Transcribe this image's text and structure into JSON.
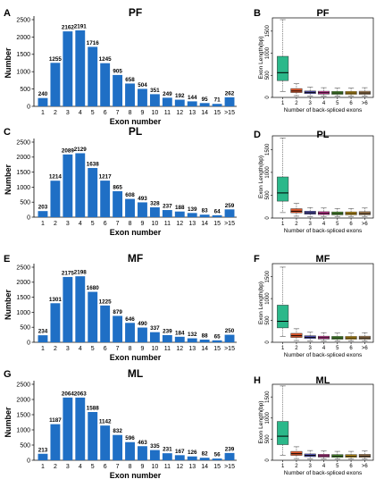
{
  "colors": {
    "bar": "#1f6fc5",
    "box_fills": [
      "#2bb88a",
      "#e25a2e",
      "#5a58c8",
      "#d93aa0",
      "#5cad38",
      "#e6b01c",
      "#b58b5a"
    ]
  },
  "bar_panels": [
    {
      "letter": "A",
      "title": "PF",
      "xlabel": "Exon number",
      "ylabel": "Number"
    },
    {
      "letter": "C",
      "title": "PL",
      "xlabel": "Exon number",
      "ylabel": "Number"
    },
    {
      "letter": "E",
      "title": "MF",
      "xlabel": "Exon number",
      "ylabel": "Number"
    },
    {
      "letter": "G",
      "title": "ML",
      "xlabel": "Exon number",
      "ylabel": "Number"
    }
  ],
  "box_panels": [
    {
      "letter": "B",
      "title": "PF",
      "xlabel": "Number of back-spliced exons",
      "ylabel": "Exon Length(bp)"
    },
    {
      "letter": "D",
      "title": "PL",
      "xlabel": "Number of back-spliced exons",
      "ylabel": "Exon Length(bp)"
    },
    {
      "letter": "F",
      "title": "MF",
      "xlabel": "Number of back-spliced exons",
      "ylabel": "Exon Length(bp)"
    },
    {
      "letter": "H",
      "title": "ML",
      "xlabel": "Number of back-spliced exons",
      "ylabel": "Exon Length(bp)"
    }
  ],
  "chart_data": [
    {
      "type": "bar",
      "title": "PF",
      "xlabel": "Exon number",
      "ylabel": "Number",
      "ylim": [
        0,
        2500
      ],
      "yticks": [
        0,
        500,
        1000,
        1500,
        2000,
        2500
      ],
      "categories": [
        "1",
        "2",
        "3",
        "4",
        "5",
        "6",
        "7",
        "8",
        "9",
        "10",
        "11",
        "12",
        "13",
        "14",
        "15",
        ">15"
      ],
      "values": [
        240,
        1255,
        2162,
        2191,
        1716,
        1245,
        905,
        658,
        504,
        351,
        249,
        192,
        144,
        95,
        71,
        262
      ]
    },
    {
      "type": "box",
      "title": "PF",
      "xlabel": "Number of back-spliced exons",
      "ylabel": "Exon Length(bp)",
      "ylim": [
        0,
        1800
      ],
      "yticks": [
        0,
        500,
        1000,
        1500
      ],
      "categories": [
        "1",
        "2",
        "3",
        "4",
        "5",
        "6",
        ">6"
      ],
      "boxes": [
        {
          "min": 130,
          "q1": 380,
          "median": 560,
          "q3": 930,
          "max": 1760
        },
        {
          "min": 40,
          "q1": 110,
          "median": 145,
          "q3": 200,
          "max": 310
        },
        {
          "min": 30,
          "q1": 85,
          "median": 115,
          "q3": 145,
          "max": 230
        },
        {
          "min": 30,
          "q1": 75,
          "median": 105,
          "q3": 140,
          "max": 220
        },
        {
          "min": 30,
          "q1": 70,
          "median": 100,
          "q3": 135,
          "max": 210
        },
        {
          "min": 30,
          "q1": 70,
          "median": 100,
          "q3": 135,
          "max": 210
        },
        {
          "min": 30,
          "q1": 70,
          "median": 100,
          "q3": 140,
          "max": 220
        }
      ]
    },
    {
      "type": "bar",
      "title": "PL",
      "xlabel": "Exon number",
      "ylabel": "Number",
      "ylim": [
        0,
        2500
      ],
      "yticks": [
        0,
        500,
        1000,
        1500,
        2000,
        2500
      ],
      "categories": [
        "1",
        "2",
        "3",
        "4",
        "5",
        "6",
        "7",
        "8",
        "9",
        "10",
        "11",
        "12",
        "13",
        "14",
        "15",
        ">15"
      ],
      "values": [
        203,
        1214,
        2089,
        2129,
        1638,
        1217,
        865,
        608,
        493,
        328,
        237,
        188,
        139,
        83,
        64,
        259
      ]
    },
    {
      "type": "box",
      "title": "PL",
      "xlabel": "Number of back-spliced exons",
      "ylabel": "Exon Length(bp)",
      "ylim": [
        0,
        1800
      ],
      "yticks": [
        0,
        500,
        1000,
        1500
      ],
      "categories": [
        "1",
        "2",
        "3",
        "4",
        "5",
        "6",
        ">6"
      ],
      "boxes": [
        {
          "min": 120,
          "q1": 370,
          "median": 550,
          "q3": 900,
          "max": 1750
        },
        {
          "min": 40,
          "q1": 115,
          "median": 150,
          "q3": 205,
          "max": 320
        },
        {
          "min": 30,
          "q1": 85,
          "median": 115,
          "q3": 150,
          "max": 230
        },
        {
          "min": 30,
          "q1": 75,
          "median": 105,
          "q3": 140,
          "max": 220
        },
        {
          "min": 30,
          "q1": 70,
          "median": 100,
          "q3": 135,
          "max": 210
        },
        {
          "min": 30,
          "q1": 70,
          "median": 100,
          "q3": 135,
          "max": 210
        },
        {
          "min": 30,
          "q1": 70,
          "median": 100,
          "q3": 140,
          "max": 220
        }
      ]
    },
    {
      "type": "bar",
      "title": "MF",
      "xlabel": "Exon number",
      "ylabel": "Number",
      "ylim": [
        0,
        2500
      ],
      "yticks": [
        0,
        500,
        1000,
        1500,
        2000,
        2500
      ],
      "categories": [
        "1",
        "2",
        "3",
        "4",
        "5",
        "6",
        "7",
        "8",
        "9",
        "10",
        "11",
        "12",
        "13",
        "14",
        "15",
        ">15"
      ],
      "values": [
        234,
        1301,
        2175,
        2198,
        1680,
        1225,
        879,
        646,
        490,
        337,
        239,
        184,
        132,
        88,
        65,
        250
      ]
    },
    {
      "type": "box",
      "title": "MF",
      "xlabel": "Number of back-spliced exons",
      "ylabel": "Exon Length(bp)",
      "ylim": [
        0,
        1800
      ],
      "yticks": [
        0,
        500,
        1000,
        1500
      ],
      "categories": [
        "1",
        "2",
        "3",
        "4",
        "5",
        "6",
        ">6"
      ],
      "boxes": [
        {
          "min": 130,
          "q1": 330,
          "median": 480,
          "q3": 850,
          "max": 1720
        },
        {
          "min": 40,
          "q1": 110,
          "median": 150,
          "q3": 205,
          "max": 310
        },
        {
          "min": 30,
          "q1": 85,
          "median": 115,
          "q3": 150,
          "max": 230
        },
        {
          "min": 30,
          "q1": 75,
          "median": 105,
          "q3": 140,
          "max": 220
        },
        {
          "min": 30,
          "q1": 70,
          "median": 100,
          "q3": 135,
          "max": 210
        },
        {
          "min": 30,
          "q1": 70,
          "median": 100,
          "q3": 135,
          "max": 210
        },
        {
          "min": 30,
          "q1": 70,
          "median": 100,
          "q3": 140,
          "max": 220
        }
      ]
    },
    {
      "type": "box",
      "title": "ML",
      "xlabel": "Number of back-spliced exons",
      "ylabel": "Exon Length(bp)",
      "ylim": [
        0,
        1800
      ],
      "yticks": [
        0,
        500,
        1000,
        1500
      ],
      "categories": [
        "1",
        "2",
        "3",
        "4",
        "5",
        "6",
        ">6"
      ],
      "boxes": [
        {
          "min": 120,
          "q1": 370,
          "median": 570,
          "q3": 920,
          "max": 1760
        },
        {
          "min": 40,
          "q1": 115,
          "median": 155,
          "q3": 210,
          "max": 320
        },
        {
          "min": 30,
          "q1": 85,
          "median": 115,
          "q3": 150,
          "max": 230
        },
        {
          "min": 30,
          "q1": 75,
          "median": 105,
          "q3": 140,
          "max": 220
        },
        {
          "min": 30,
          "q1": 70,
          "median": 100,
          "q3": 135,
          "max": 210
        },
        {
          "min": 30,
          "q1": 70,
          "median": 100,
          "q3": 135,
          "max": 210
        },
        {
          "min": 30,
          "q1": 70,
          "median": 100,
          "q3": 140,
          "max": 220
        }
      ]
    },
    {
      "type": "bar",
      "title": "ML",
      "xlabel": "Exon number",
      "ylabel": "Number",
      "ylim": [
        0,
        2500
      ],
      "yticks": [
        0,
        500,
        1000,
        1500,
        2000,
        2500
      ],
      "categories": [
        "1",
        "2",
        "3",
        "4",
        "5",
        "6",
        "7",
        "8",
        "9",
        "10",
        "11",
        "12",
        "13",
        "14",
        "15",
        ">15"
      ],
      "values": [
        213,
        1187,
        2064,
        2063,
        1588,
        1142,
        832,
        596,
        463,
        335,
        231,
        167,
        126,
        82,
        56,
        239
      ]
    }
  ]
}
